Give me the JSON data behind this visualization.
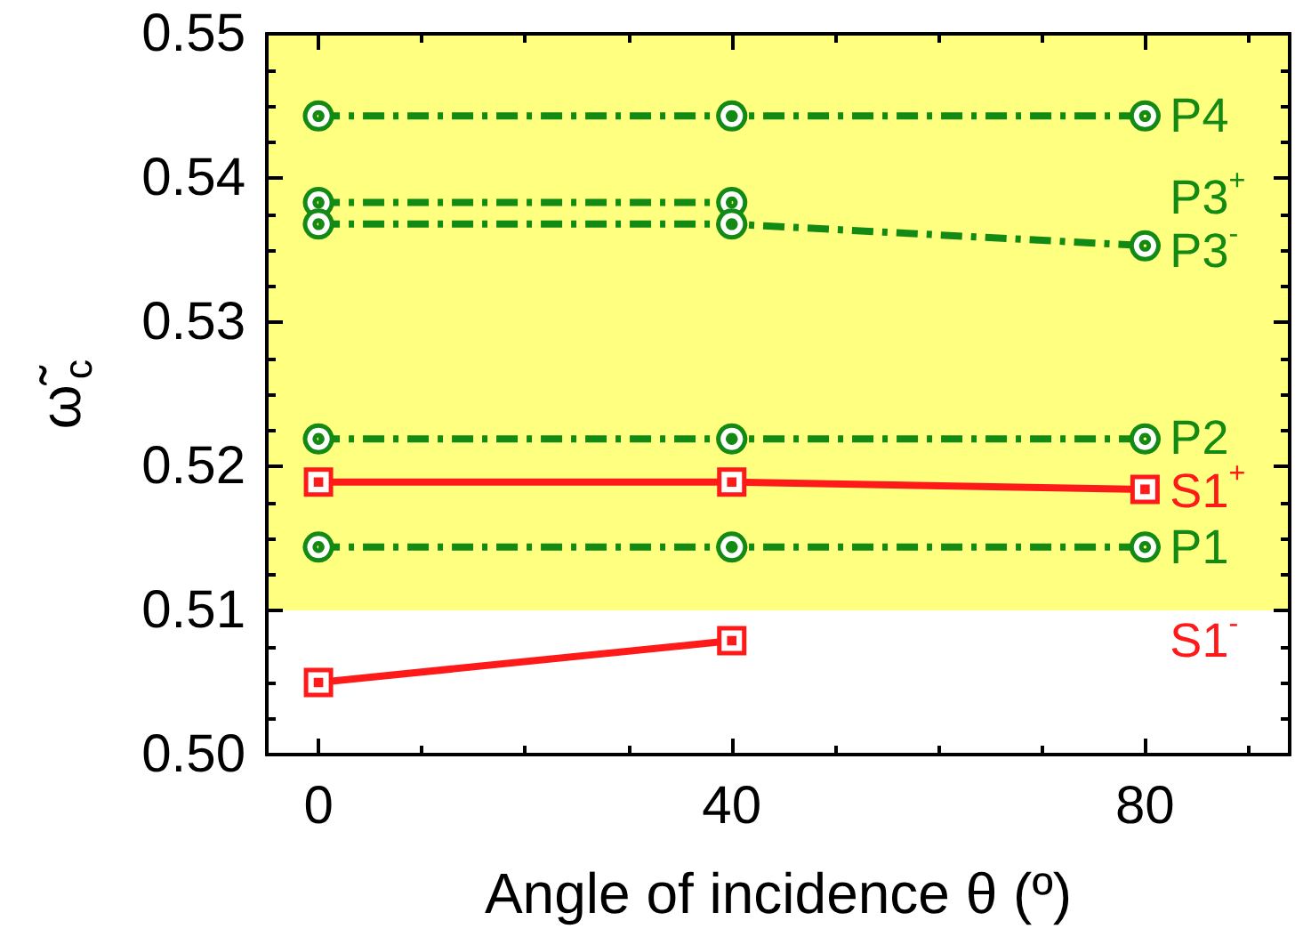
{
  "chart_data": {
    "type": "line",
    "xlabel": "Angle of incidence θ (º)",
    "ylabel": "ω̃$_{c}$",
    "x": [
      0,
      40,
      80
    ],
    "series": [
      {
        "name": "P4",
        "color": "#138a13",
        "marker": "circle",
        "line_style": "dashdot",
        "values": [
          0.5443,
          0.5443,
          0.5443
        ]
      },
      {
        "name": "P3$^{+}$",
        "color": "#138a13",
        "marker": "circle",
        "line_style": "dashdot",
        "values": [
          0.5383,
          0.5383,
          null
        ]
      },
      {
        "name": "P3$^{-}$",
        "color": "#138a13",
        "marker": "circle",
        "line_style": "dashdot",
        "values": [
          0.5368,
          0.5368,
          0.5353
        ]
      },
      {
        "name": "P2",
        "color": "#138a13",
        "marker": "circle",
        "line_style": "dashdot",
        "values": [
          0.5219,
          0.5219,
          0.5219
        ]
      },
      {
        "name": "S1$^{+}$",
        "color": "#ff1a1a",
        "marker": "square",
        "line_style": "solid",
        "values": [
          0.5189,
          0.5189,
          0.5184
        ]
      },
      {
        "name": "P1",
        "color": "#138a13",
        "marker": "circle",
        "line_style": "dashdot",
        "values": [
          0.5144,
          0.5144,
          0.5144
        ]
      },
      {
        "name": "S1$^{-}$",
        "color": "#ff1a1a",
        "marker": "square",
        "line_style": "solid",
        "values": [
          0.505,
          0.5079,
          null
        ]
      }
    ],
    "xlim": [
      -5,
      94
    ],
    "xticks": [
      0,
      {
        "value": 10,
        "label": null
      },
      {
        "value": 20,
        "label": null
      },
      {
        "value": 30,
        "label": null
      },
      40,
      {
        "value": 50,
        "label": null
      },
      {
        "value": 60,
        "label": null
      },
      {
        "value": 70,
        "label": null
      },
      80,
      {
        "value": 90,
        "label": null
      }
    ],
    "ylim": [
      0.5,
      0.55
    ],
    "yticks": [
      {
        "value": 0.5,
        "label": "0.50"
      },
      {
        "value": 0.5025,
        "label": null
      },
      {
        "value": 0.505,
        "label": null
      },
      {
        "value": 0.5075,
        "label": null
      },
      {
        "value": 0.51,
        "label": "0.51"
      },
      {
        "value": 0.5125,
        "label": null
      },
      {
        "value": 0.515,
        "label": null
      },
      {
        "value": 0.5175,
        "label": null
      },
      {
        "value": 0.52,
        "label": "0.52"
      },
      {
        "value": 0.5225,
        "label": null
      },
      {
        "value": 0.525,
        "label": null
      },
      {
        "value": 0.5275,
        "label": null
      },
      {
        "value": 0.53,
        "label": "0.53"
      },
      {
        "value": 0.5325,
        "label": null
      },
      {
        "value": 0.535,
        "label": null
      },
      {
        "value": 0.5375,
        "label": null
      },
      {
        "value": 0.54,
        "label": "0.54"
      },
      {
        "value": 0.5425,
        "label": null
      },
      {
        "value": 0.545,
        "label": null
      },
      {
        "value": 0.5475,
        "label": null
      },
      {
        "value": 0.55,
        "label": "0.55"
      }
    ],
    "bands": [
      {
        "axis": "y",
        "from": 0.51,
        "to": 0.55,
        "color": "#ffff80"
      }
    ],
    "grid": false
  }
}
